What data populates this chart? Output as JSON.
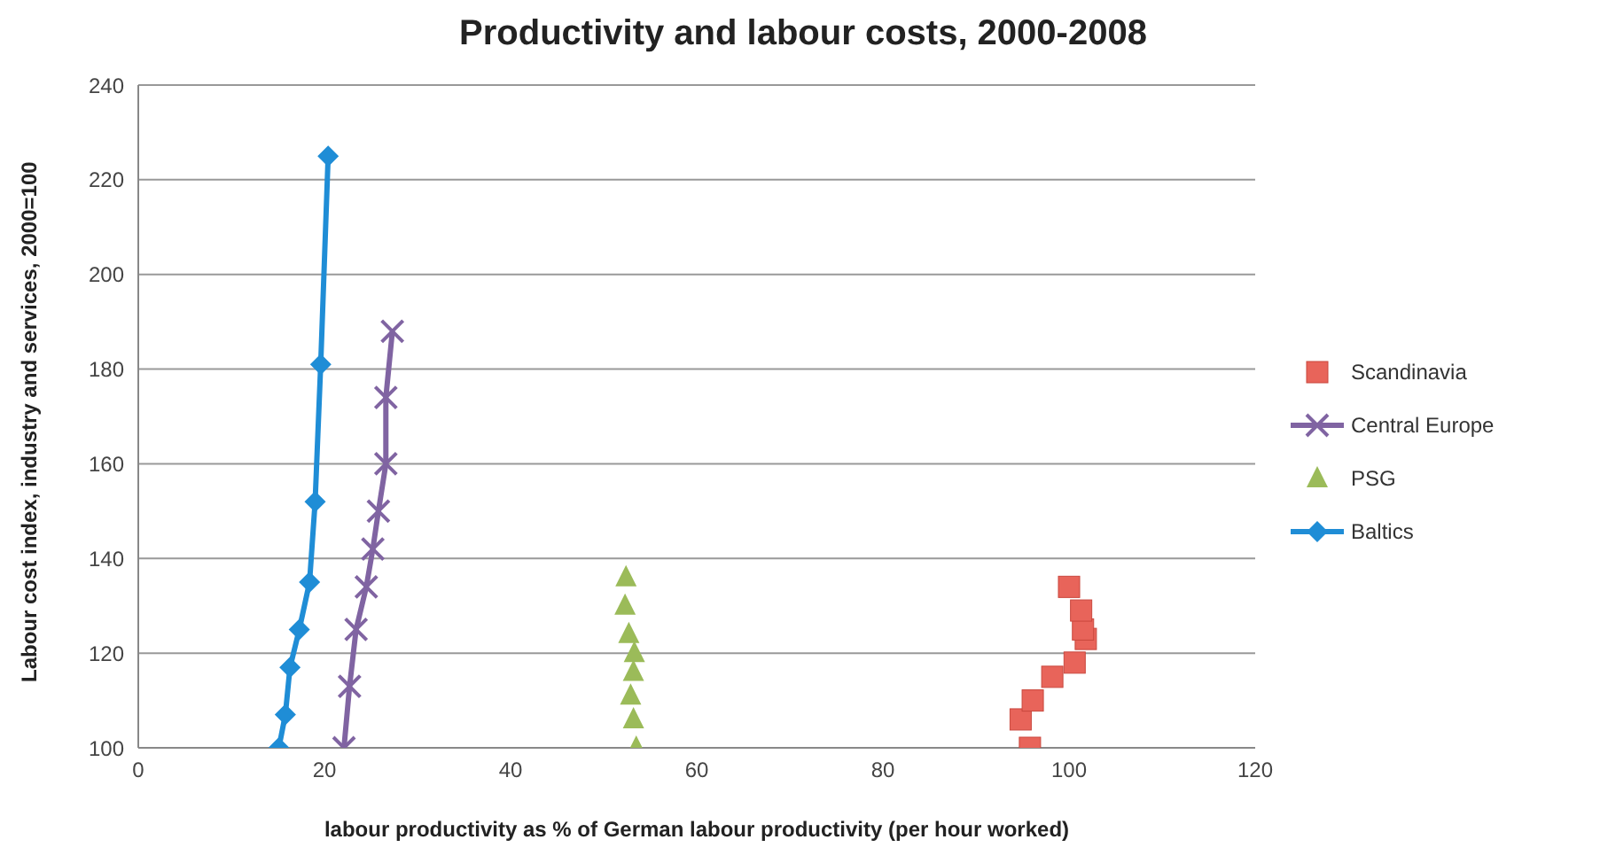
{
  "chart_data": {
    "type": "scatter",
    "title": "Productivity and labour costs, 2000-2008",
    "xlabel": "labour productivity as % of German labour productivity (per hour worked)",
    "ylabel": "Labour cost index, industry and services, 2000=100",
    "xlim": [
      0,
      120
    ],
    "xticks": [
      0,
      20,
      40,
      60,
      80,
      100,
      120
    ],
    "ylim": [
      100,
      240
    ],
    "yticks": [
      100,
      120,
      140,
      160,
      180,
      200,
      220,
      240
    ],
    "grid": "y",
    "legend": "right",
    "series": [
      {
        "name": "Scandinavia",
        "marker": "square",
        "color": "#e8645a",
        "x": [
          95.8,
          94.8,
          96.1,
          98.2,
          100.6,
          101.8,
          101.5,
          101.3,
          100.0
        ],
        "values": [
          100,
          106,
          110,
          115,
          118,
          123,
          125,
          129,
          134
        ]
      },
      {
        "name": "Central Europe",
        "type": "line",
        "marker": "cross",
        "color": "#8064a2",
        "x": [
          22.1,
          22.7,
          23.4,
          24.5,
          25.2,
          25.8,
          26.6,
          26.6,
          27.3
        ],
        "values": [
          100,
          113,
          125,
          134,
          142,
          150,
          160,
          174,
          188
        ]
      },
      {
        "name": "PSG",
        "marker": "triangle",
        "color": "#9bbb59",
        "x": [
          53.5,
          53.2,
          52.9,
          53.2,
          53.3,
          52.7,
          52.3,
          52.4
        ],
        "values": [
          100,
          106,
          111,
          116,
          120,
          124,
          130,
          136
        ]
      },
      {
        "name": "Baltics",
        "type": "line",
        "marker": "diamond",
        "color": "#1f8dd6",
        "x": [
          15.1,
          15.8,
          16.3,
          17.3,
          18.4,
          19.0,
          19.6,
          20.4
        ],
        "values": [
          100,
          107,
          117,
          125,
          135,
          152,
          181,
          225
        ]
      }
    ]
  }
}
